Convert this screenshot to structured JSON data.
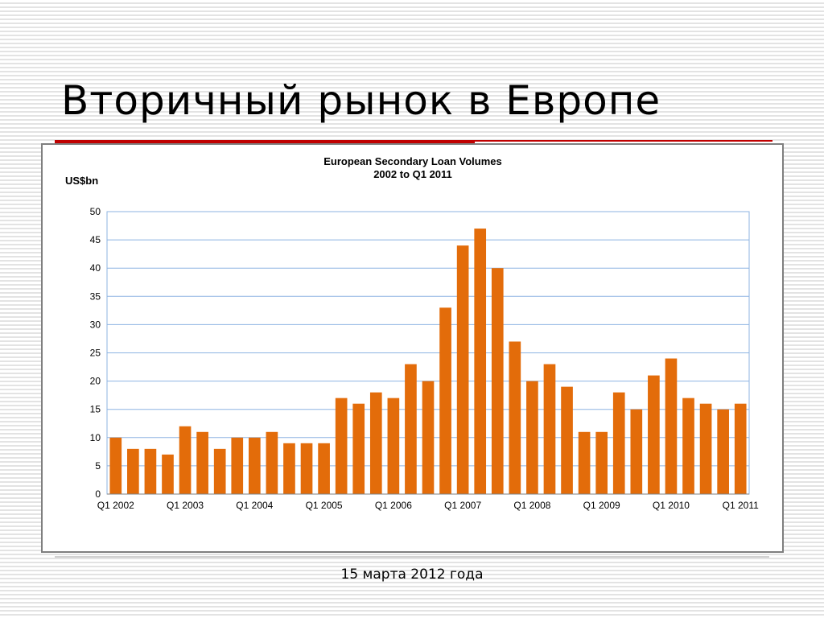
{
  "slide": {
    "title": "Вторичный рынок в Европе",
    "footer": "15 марта 2012 года",
    "accent_color": "#c00000"
  },
  "chart_data": {
    "type": "bar",
    "title": "European Secondary Loan Volumes",
    "subtitle": "2002 to Q1 2011",
    "ylabel": "US$bn",
    "xlabel": "",
    "ylim": [
      0,
      50
    ],
    "yticks": [
      0,
      5,
      10,
      15,
      20,
      25,
      30,
      35,
      40,
      45,
      50
    ],
    "grid": true,
    "bar_color": "#e36c0a",
    "gridline_color": "#8db3e2",
    "categories": [
      "Q1 2002",
      "Q2 2002",
      "Q3 2002",
      "Q4 2002",
      "Q1 2003",
      "Q2 2003",
      "Q3 2003",
      "Q4 2003",
      "Q1 2004",
      "Q2 2004",
      "Q3 2004",
      "Q4 2004",
      "Q1 2005",
      "Q2 2005",
      "Q3 2005",
      "Q4 2005",
      "Q1 2006",
      "Q2 2006",
      "Q3 2006",
      "Q4 2006",
      "Q1 2007",
      "Q2 2007",
      "Q3 2007",
      "Q4 2007",
      "Q1 2008",
      "Q2 2008",
      "Q3 2008",
      "Q4 2008",
      "Q1 2009",
      "Q2 2009",
      "Q3 2009",
      "Q4 2009",
      "Q1 2010",
      "Q2 2010",
      "Q3 2010",
      "Q4 2010",
      "Q1 2011"
    ],
    "tick_labels": [
      "Q1 2002",
      "Q1 2003",
      "Q1 2004",
      "Q1 2005",
      "Q1 2006",
      "Q1 2007",
      "Q1 2008",
      "Q1 2009",
      "Q1 2010",
      "Q1 2011"
    ],
    "values": [
      10,
      8,
      8,
      7,
      12,
      11,
      8,
      10,
      10,
      11,
      9,
      9,
      9,
      17,
      16,
      18,
      17,
      23,
      20,
      33,
      44,
      47,
      40,
      27,
      20,
      23,
      19,
      11,
      11,
      18,
      15,
      21,
      24,
      17,
      16,
      15,
      16
    ]
  }
}
